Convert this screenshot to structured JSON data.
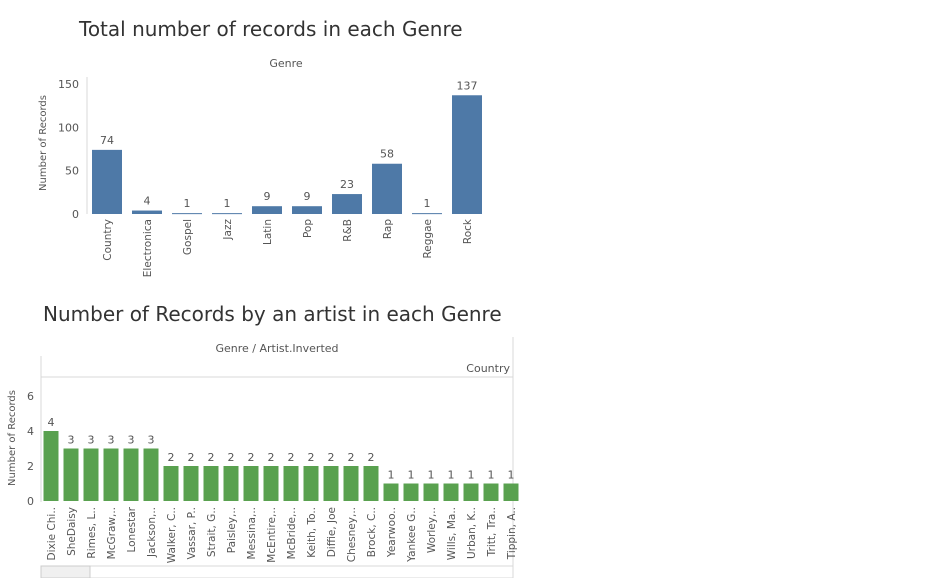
{
  "chart_data": [
    {
      "type": "bar",
      "title": "Total number of records in each Genre",
      "header": "Genre",
      "ylabel": "Number of Records",
      "ylim": [
        0,
        150
      ],
      "yticks": [
        0,
        50,
        100,
        150
      ],
      "bar_color": "#4e79a7",
      "categories": [
        "Country",
        "Electronica",
        "Gospel",
        "Jazz",
        "Latin",
        "Pop",
        "R&B",
        "Rap",
        "Reggae",
        "Rock"
      ],
      "values": [
        74,
        4,
        1,
        1,
        9,
        9,
        23,
        58,
        1,
        137
      ]
    },
    {
      "type": "bar",
      "title": "Number of Records by an artist in each Genre",
      "header": "Genre / Artist.Inverted",
      "pane_label": "Country",
      "ylabel": "Number of Records",
      "ylim": [
        0,
        6
      ],
      "yticks": [
        0,
        2,
        4,
        6
      ],
      "bar_color": "#59a14f",
      "categories": [
        "Dixie Chi..",
        "SheDaisy",
        "Rimes, L..",
        "McGraw,..",
        "Lonestar",
        "Jackson,..",
        "Walker, C..",
        "Vassar, P..",
        "Strait, G..",
        "Paisley,..",
        "Messina,..",
        "McEntire,..",
        "McBride,..",
        "Keith, To..",
        "Diffie, Joe",
        "Chesney,..",
        "Brock, C..",
        "Yearwoo..",
        "Yankee G..",
        "Worley,..",
        "Wills, Ma..",
        "Urban, K..",
        "Tritt, Tra..",
        "Tippin, A.."
      ],
      "values": [
        4,
        3,
        3,
        3,
        3,
        3,
        2,
        2,
        2,
        2,
        2,
        2,
        2,
        2,
        2,
        2,
        2,
        1,
        1,
        1,
        1,
        1,
        1,
        1
      ]
    }
  ]
}
